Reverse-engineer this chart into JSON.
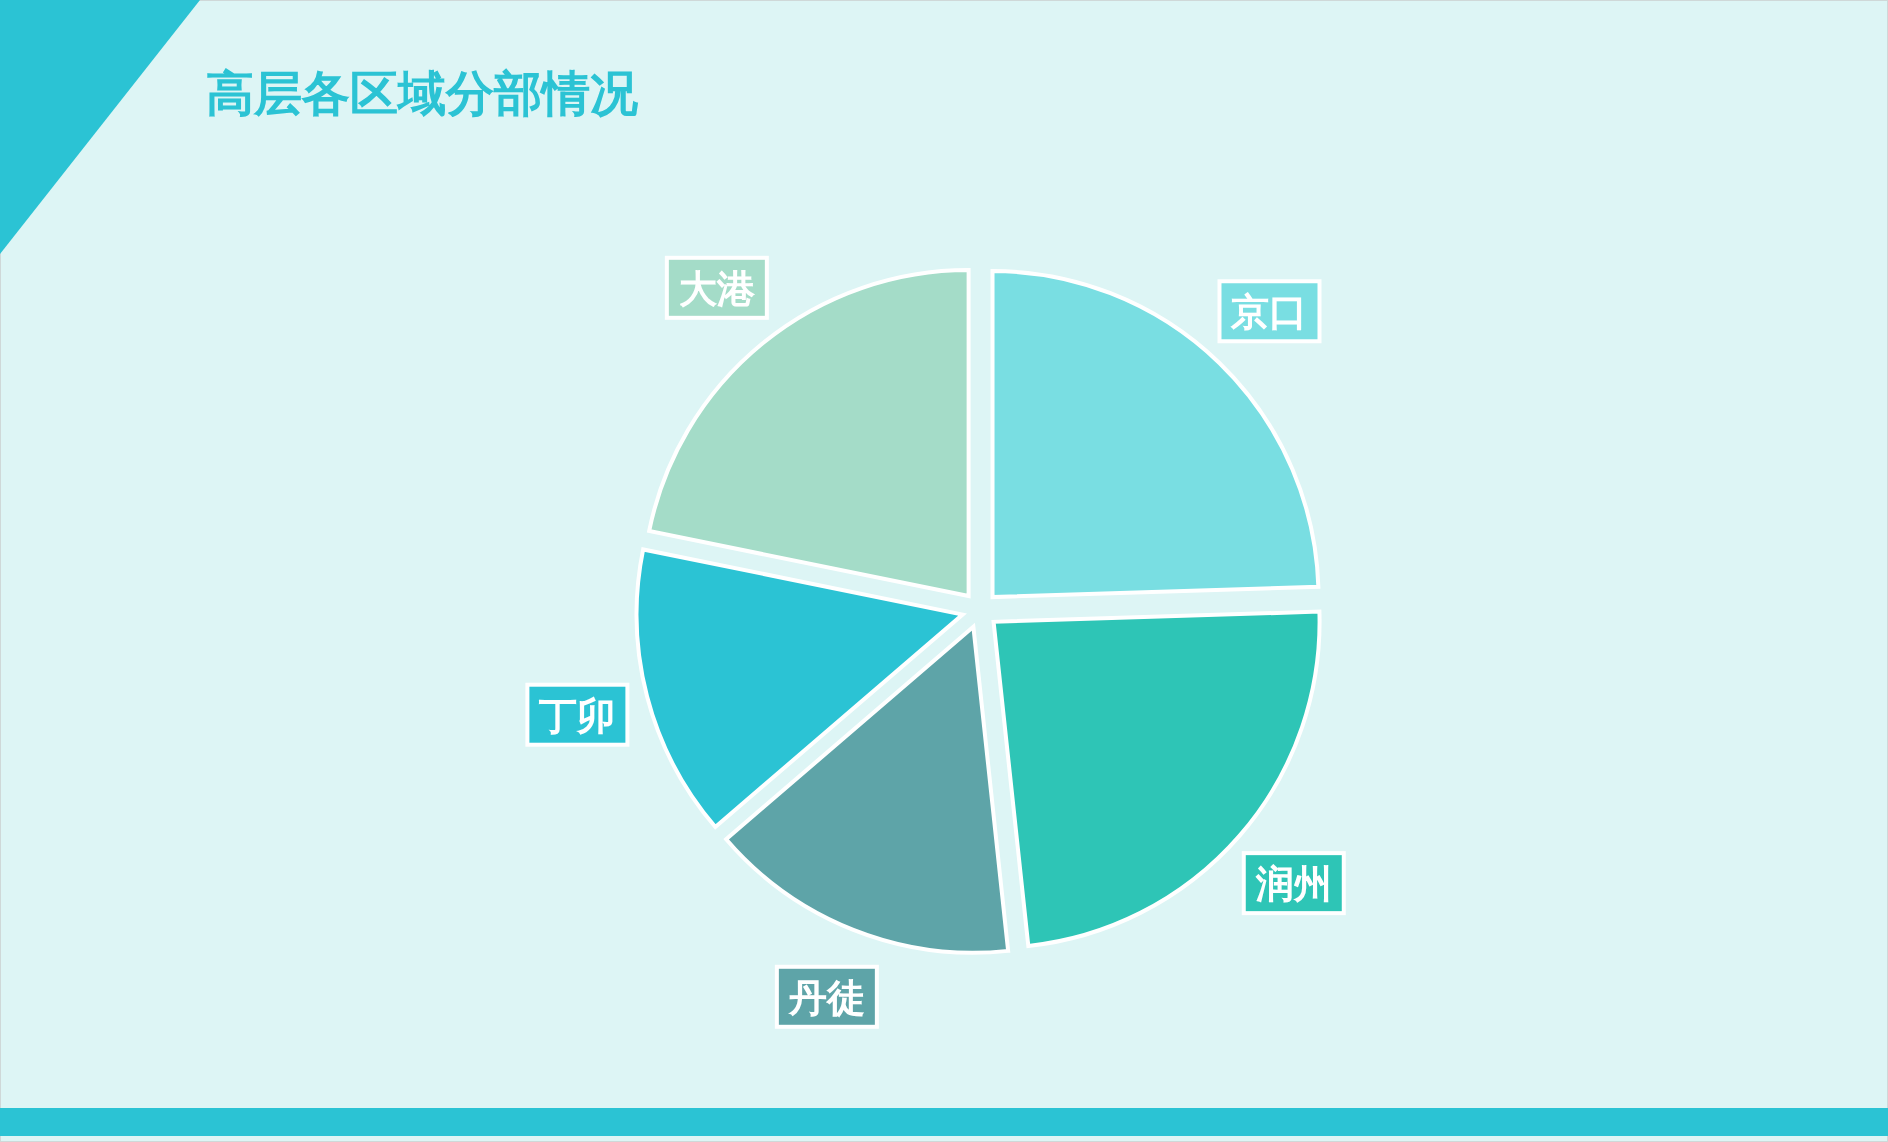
{
  "chart_data": {
    "type": "pie",
    "title": "高层各区域分部情况",
    "categories": [
      "京口",
      "润州",
      "丹徒",
      "丁卯",
      "大港"
    ],
    "values": [
      24.5,
      23.8,
      15.4,
      14.5,
      21.8
    ],
    "colors": [
      "#79dee2",
      "#2ec5b6",
      "#5ea4a8",
      "#2bc3d4",
      "#a4dcc8"
    ]
  }
}
